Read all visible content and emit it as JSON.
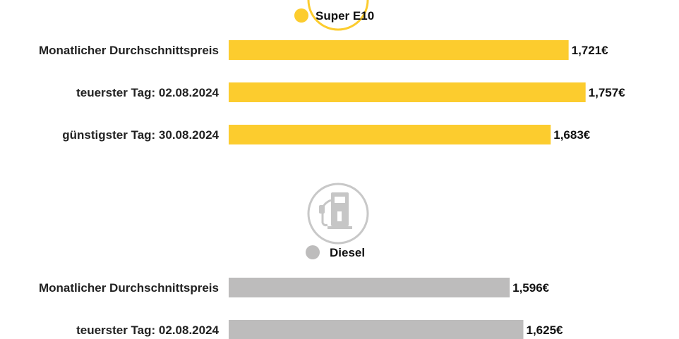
{
  "colors": {
    "super_e10": "#fccc2e",
    "diesel": "#bdbcbc",
    "icon_stroke": "#c8c8c8",
    "icon_fill": "#c6c6c6"
  },
  "icons": {
    "super_e10": "fuel-pump-icon",
    "diesel": "fuel-pump-icon"
  },
  "chart_data": {
    "type": "bar",
    "orientation": "horizontal",
    "groups": [
      {
        "name": "Super E10",
        "color": "#fccc2e",
        "categories": [
          "Monatlicher Durchschnittspreis",
          "teuerster Tag: 02.08.2024",
          "günstigster Tag: 30.08.2024"
        ],
        "values": [
          1.721,
          1.757,
          1.683
        ],
        "value_labels": [
          "1,721€",
          "1,757€",
          "1,683€"
        ]
      },
      {
        "name": "Diesel",
        "color": "#bdbcbc",
        "categories": [
          "Monatlicher Durchschnittspreis",
          "teuerster Tag: 02.08.2024"
        ],
        "values": [
          1.596,
          1.625
        ],
        "value_labels": [
          "1,596€",
          "1,625€"
        ]
      }
    ],
    "xlim": [
      1.0,
      1.8
    ],
    "grid": false,
    "legend": "above each group"
  }
}
